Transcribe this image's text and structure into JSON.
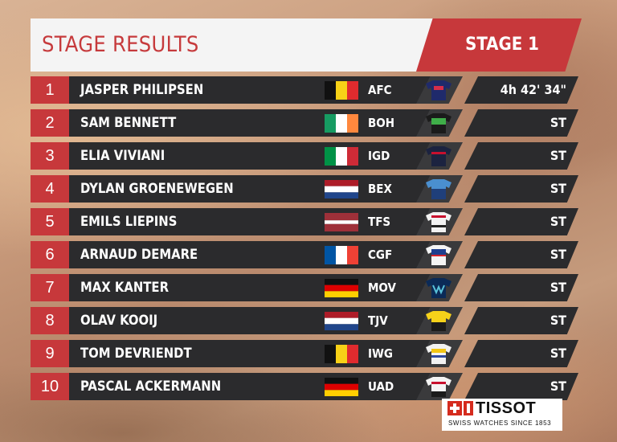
{
  "header": {
    "title": "STAGE RESULTS",
    "stage": "STAGE 1"
  },
  "colors": {
    "accent_red": "#c7383b",
    "bar_dark": "#2b2b2d",
    "title_bg": "#f4f4f4"
  },
  "rows": [
    {
      "pos": "1",
      "name": "JASPER PHILIPSEN",
      "team": "AFC",
      "time": "4h 42' 34\"",
      "flag": "belgium-flag",
      "jersey": "alpecin-fenix-jersey"
    },
    {
      "pos": "2",
      "name": "SAM BENNETT",
      "team": "BOH",
      "time": "ST",
      "flag": "ireland-flag",
      "jersey": "bora-hansgrohe-jersey"
    },
    {
      "pos": "3",
      "name": "ELIA VIVIANI",
      "team": "IGD",
      "time": "ST",
      "flag": "italy-flag",
      "jersey": "ineos-grenadiers-jersey"
    },
    {
      "pos": "4",
      "name": "DYLAN GROENEWEGEN",
      "team": "BEX",
      "time": "ST",
      "flag": "netherlands-flag",
      "jersey": "bikeexchange-jersey"
    },
    {
      "pos": "5",
      "name": "EMILS LIEPINS",
      "team": "TFS",
      "time": "ST",
      "flag": "latvia-flag",
      "jersey": "trek-segafredo-jersey"
    },
    {
      "pos": "6",
      "name": "ARNAUD DEMARE",
      "team": "CGF",
      "time": "ST",
      "flag": "france-flag",
      "jersey": "groupama-fdj-jersey"
    },
    {
      "pos": "7",
      "name": "MAX KANTER",
      "team": "MOV",
      "time": "ST",
      "flag": "germany-flag",
      "jersey": "movistar-jersey"
    },
    {
      "pos": "8",
      "name": "OLAV KOOIJ",
      "team": "TJV",
      "time": "ST",
      "flag": "netherlands-flag",
      "jersey": "jumbo-visma-jersey"
    },
    {
      "pos": "9",
      "name": "TOM DEVRIENDT",
      "team": "IWG",
      "time": "ST",
      "flag": "belgium-flag",
      "jersey": "intermarche-wanty-jersey"
    },
    {
      "pos": "10",
      "name": "PASCAL ACKERMANN",
      "team": "UAD",
      "time": "ST",
      "flag": "germany-flag",
      "jersey": "uae-emirates-jersey"
    }
  ],
  "sponsor": {
    "brand": "TISSOT",
    "tagline": "SWISS WATCHES SINCE 1853",
    "logo_icon": "swiss-cross-icon"
  }
}
